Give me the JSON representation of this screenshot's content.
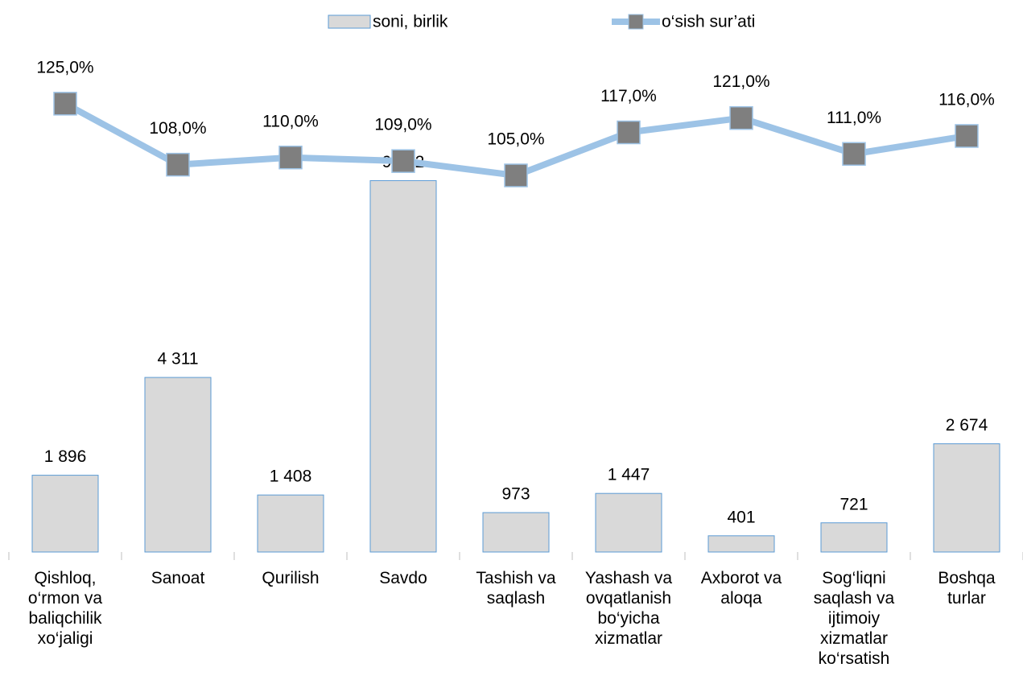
{
  "chart_data": {
    "type": "bar-line",
    "categories": [
      "Qishloq, o‘rmon va baliqchilik xo‘jaligi",
      "Sanoat",
      "Qurilish",
      "Savdo",
      "Tashish va saqlash",
      "Yashash va ovqatlanish bo‘yicha xizmatlar",
      "Axborot va aloqa",
      "Sog‘liqni saqlash va ijtimoiy xizmatlar ko‘rsatish",
      "Boshqa turlar"
    ],
    "series": [
      {
        "name": "soni, birlik",
        "type": "bar",
        "color": "#d9d9d9",
        "edge_color": "#5b9bd5",
        "values": [
          1896,
          4311,
          1408,
          9172,
          973,
          1447,
          401,
          721,
          2674
        ],
        "value_labels": [
          "1 896",
          "4 311",
          "1 408",
          "9 172",
          "973",
          "1 447",
          "401",
          "721",
          "2 674"
        ]
      },
      {
        "name": "o‘sish sur’ati",
        "type": "line",
        "axis": "y2",
        "color": "#9dc3e6",
        "marker_color": "#7f7f7f",
        "values": [
          125,
          108,
          110,
          109,
          105,
          117,
          121,
          111,
          116
        ],
        "value_labels": [
          "125,0%",
          "108,0%",
          "110,0%",
          "109,0%",
          "105,0%",
          "117,0%",
          "121,0%",
          "111,0%",
          "116,0%"
        ]
      }
    ],
    "ylim": [
      0,
      12400
    ],
    "y2lim": [
      0,
      140
    ],
    "legend": "top"
  }
}
